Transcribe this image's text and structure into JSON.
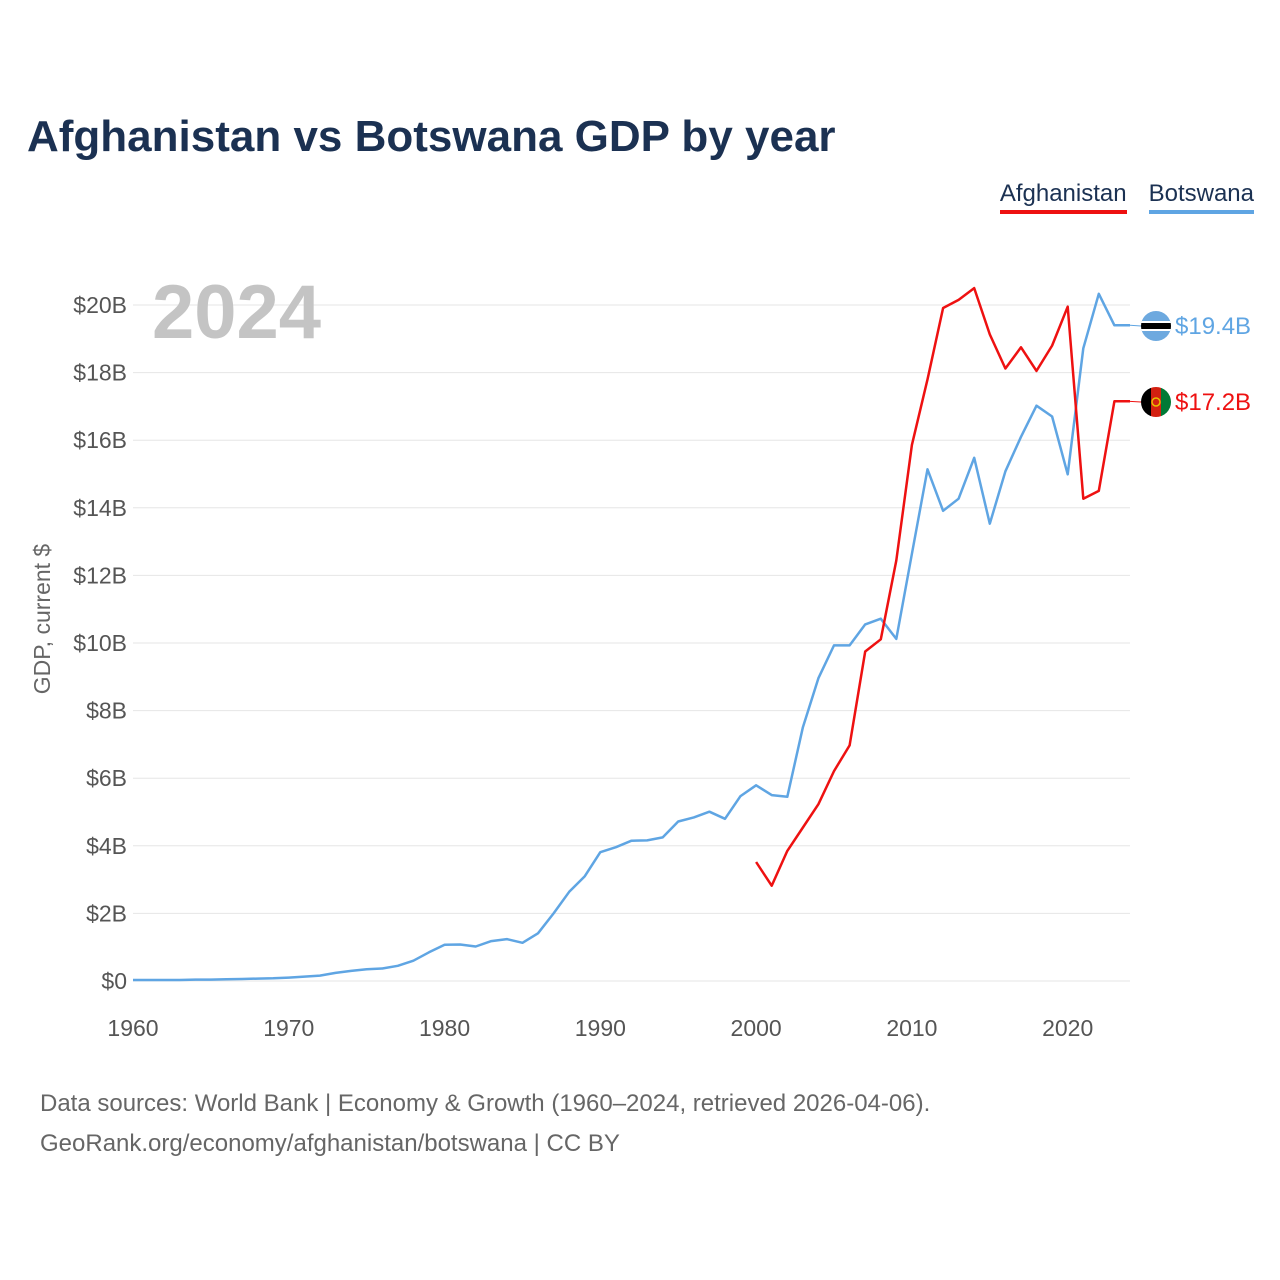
{
  "title": "Afghanistan vs Botswana GDP by year",
  "legend": [
    {
      "label": "Afghanistan",
      "color": "#ee1111"
    },
    {
      "label": "Botswana",
      "color": "#5fa5e3"
    }
  ],
  "source": {
    "line1": "Data sources: World Bank | Economy & Growth (1960–2024, retrieved 2026-04-06).",
    "line2": "GeoRank.org/economy/afghanistan/botswana | CC BY"
  },
  "chart_data": {
    "type": "line",
    "title": "Afghanistan vs Botswana GDP by year",
    "year_label": "2024",
    "ylabel": "GDP, current $",
    "xlabel": "",
    "xlim": [
      1960,
      2024
    ],
    "ylim": [
      0,
      20
    ],
    "unit": "billion US$",
    "x_ticks": [
      "1960",
      "1970",
      "1980",
      "1990",
      "2000",
      "2010",
      "2020"
    ],
    "y_ticks": [
      "$0",
      "$2B",
      "$4B",
      "$6B",
      "$8B",
      "$10B",
      "$12B",
      "$14B",
      "$16B",
      "$18B",
      "$20B"
    ],
    "grid": true,
    "series": [
      {
        "name": "Afghanistan",
        "color": "#ee1111",
        "end_label": "$17.2B",
        "flag": "afghanistan-flag",
        "x": [
          2000,
          2001,
          2002,
          2003,
          2004,
          2005,
          2006,
          2007,
          2008,
          2009,
          2010,
          2011,
          2012,
          2013,
          2014,
          2015,
          2016,
          2017,
          2018,
          2019,
          2020,
          2021,
          2022,
          2023,
          2024
        ],
        "values": [
          3.52,
          2.82,
          3.85,
          4.54,
          5.23,
          6.21,
          6.97,
          9.75,
          10.11,
          12.44,
          15.86,
          17.8,
          19.91,
          20.15,
          20.5,
          19.13,
          18.12,
          18.75,
          18.05,
          18.8,
          19.95,
          14.27,
          14.5,
          17.15,
          17.15
        ]
      },
      {
        "name": "Botswana",
        "color": "#5fa5e3",
        "end_label": "$19.4B",
        "flag": "botswana-flag",
        "x": [
          1960,
          1961,
          1962,
          1963,
          1964,
          1965,
          1966,
          1967,
          1968,
          1969,
          1970,
          1971,
          1972,
          1973,
          1974,
          1975,
          1976,
          1977,
          1978,
          1979,
          1980,
          1981,
          1982,
          1983,
          1984,
          1985,
          1986,
          1987,
          1988,
          1989,
          1990,
          1991,
          1992,
          1993,
          1994,
          1995,
          1996,
          1997,
          1998,
          1999,
          2000,
          2001,
          2002,
          2003,
          2004,
          2005,
          2006,
          2007,
          2008,
          2009,
          2010,
          2011,
          2012,
          2013,
          2014,
          2015,
          2016,
          2017,
          2018,
          2019,
          2020,
          2021,
          2022,
          2023,
          2024
        ],
        "values": [
          0.03,
          0.03,
          0.03,
          0.03,
          0.04,
          0.04,
          0.05,
          0.06,
          0.07,
          0.08,
          0.1,
          0.13,
          0.16,
          0.24,
          0.3,
          0.35,
          0.37,
          0.45,
          0.6,
          0.85,
          1.07,
          1.08,
          1.02,
          1.18,
          1.24,
          1.13,
          1.41,
          2.0,
          2.64,
          3.1,
          3.81,
          3.96,
          4.15,
          4.16,
          4.25,
          4.72,
          4.84,
          5.01,
          4.8,
          5.47,
          5.79,
          5.5,
          5.45,
          7.51,
          8.96,
          9.93,
          9.93,
          10.55,
          10.72,
          10.12,
          12.64,
          15.14,
          13.91,
          14.27,
          15.48,
          13.53,
          15.08,
          16.1,
          17.02,
          16.7,
          14.99,
          18.72,
          20.33,
          19.4,
          19.4
        ]
      }
    ]
  }
}
